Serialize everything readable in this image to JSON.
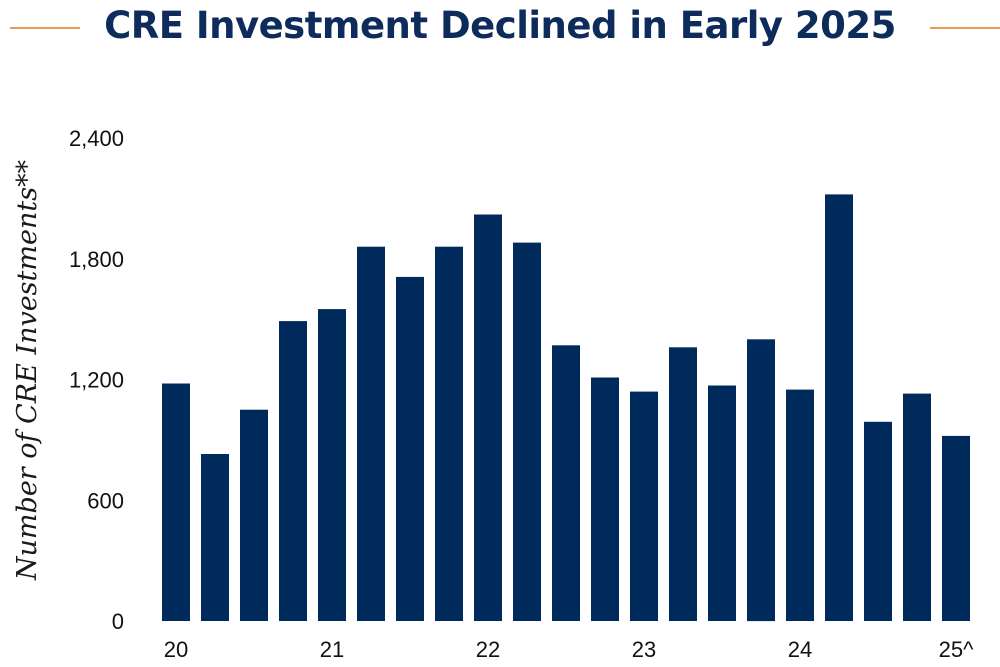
{
  "title": "CRE Investment Declined in Early 2025",
  "colors": {
    "bar": "#002a5c",
    "title": "#0d2c5c",
    "rule": "#e79b53"
  },
  "chart_data": {
    "type": "bar",
    "title": "CRE Investment Declined in Early 2025",
    "xlabel": "",
    "ylabel": "Number of CRE Investments**",
    "ylim": [
      0,
      2400
    ],
    "yticks": [
      0,
      600,
      1200,
      1800,
      2400
    ],
    "ytick_labels": [
      "0",
      "600",
      "1,200",
      "1,800",
      "2,400"
    ],
    "xtick_labels": [
      {
        "label": "20",
        "index": 0
      },
      {
        "label": "21",
        "index": 4
      },
      {
        "label": "22",
        "index": 8
      },
      {
        "label": "23",
        "index": 12
      },
      {
        "label": "24",
        "index": 16
      },
      {
        "label": "25^",
        "index": 20
      }
    ],
    "grid": false,
    "values": [
      1180,
      830,
      1050,
      1490,
      1550,
      1860,
      1710,
      1860,
      2020,
      1880,
      1370,
      1210,
      1140,
      1360,
      1170,
      1400,
      1150,
      2120,
      990,
      1130,
      920
    ]
  }
}
